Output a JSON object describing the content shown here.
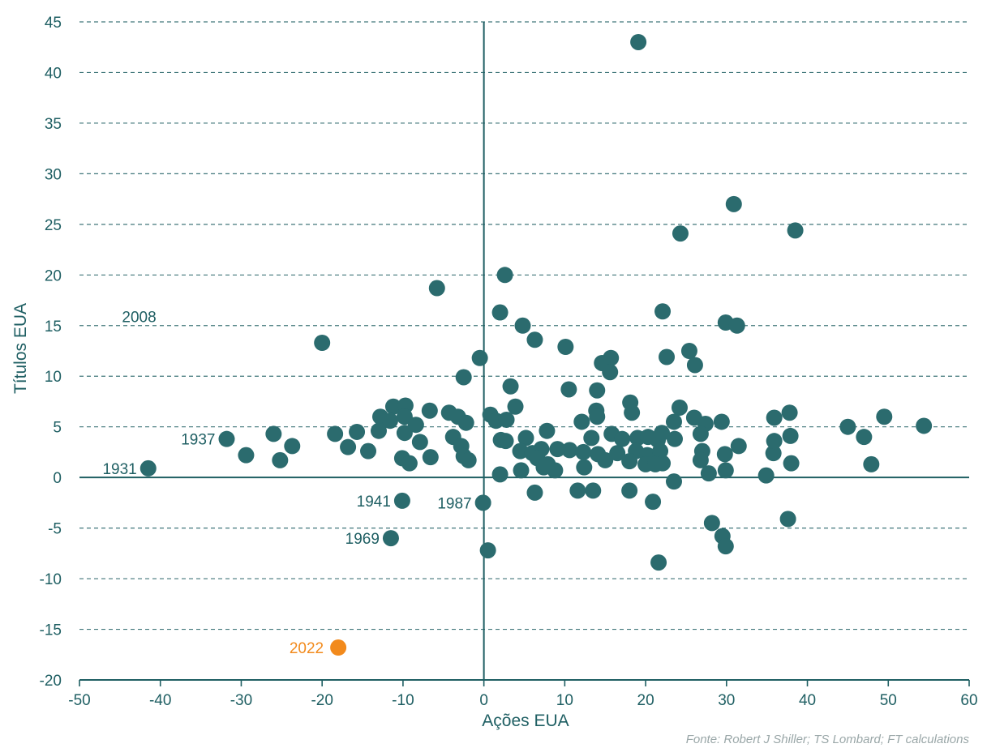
{
  "chart_data": {
    "type": "scatter",
    "xlabel": "Ações EUA",
    "ylabel": "Títulos EUA",
    "xlim": [
      -50,
      60
    ],
    "ylim": [
      -20,
      45
    ],
    "x_ticks": [
      -50,
      -40,
      -30,
      -20,
      -10,
      0,
      10,
      20,
      30,
      40,
      50,
      60
    ],
    "y_ticks": [
      -20,
      -15,
      -10,
      -5,
      0,
      5,
      10,
      15,
      20,
      25,
      30,
      35,
      40,
      45
    ],
    "grid": "horizontal-dashed",
    "colors": {
      "points": "#2b6b6e",
      "highlight": "#f28a1c",
      "axis": "#1f5f63"
    },
    "points": [
      [
        19.1,
        43.0
      ],
      [
        30.9,
        27.0
      ],
      [
        24.3,
        24.1
      ],
      [
        38.5,
        24.4
      ],
      [
        2.6,
        20.0
      ],
      [
        -5.8,
        18.7
      ],
      [
        22.1,
        16.4
      ],
      [
        2.0,
        16.3
      ],
      [
        4.8,
        15.0
      ],
      [
        29.9,
        15.3
      ],
      [
        31.3,
        15.0
      ],
      [
        -20.0,
        13.3
      ],
      [
        6.3,
        13.6
      ],
      [
        10.1,
        12.9
      ],
      [
        25.4,
        12.5
      ],
      [
        22.6,
        11.9
      ],
      [
        15.7,
        11.8
      ],
      [
        14.6,
        11.3
      ],
      [
        26.1,
        11.1
      ],
      [
        -0.5,
        11.8
      ],
      [
        15.6,
        10.4
      ],
      [
        -2.5,
        9.9
      ],
      [
        3.3,
        9.0
      ],
      [
        10.5,
        8.7
      ],
      [
        14.0,
        8.6
      ],
      [
        18.1,
        7.4
      ],
      [
        3.9,
        7.0
      ],
      [
        24.2,
        6.9
      ],
      [
        18.3,
        6.4
      ],
      [
        -11.2,
        7.0
      ],
      [
        -9.7,
        7.1
      ],
      [
        -6.7,
        6.6
      ],
      [
        -4.3,
        6.4
      ],
      [
        0.8,
        6.2
      ],
      [
        13.9,
        6.6
      ],
      [
        35.9,
        5.9
      ],
      [
        37.8,
        6.4
      ],
      [
        49.5,
        6.0
      ],
      [
        -12.8,
        6.0
      ],
      [
        -11.6,
        5.6
      ],
      [
        -9.8,
        6.0
      ],
      [
        -8.4,
        5.2
      ],
      [
        -3.2,
        6.0
      ],
      [
        -2.2,
        5.4
      ],
      [
        1.5,
        5.6
      ],
      [
        2.8,
        5.7
      ],
      [
        14.0,
        6.0
      ],
      [
        12.1,
        5.5
      ],
      [
        26.0,
        5.9
      ],
      [
        23.5,
        5.5
      ],
      [
        27.4,
        5.3
      ],
      [
        29.4,
        5.5
      ],
      [
        45.0,
        5.0
      ],
      [
        54.4,
        5.1
      ],
      [
        -18.4,
        4.3
      ],
      [
        -15.7,
        4.5
      ],
      [
        -13.0,
        4.6
      ],
      [
        -9.8,
        4.4
      ],
      [
        -3.8,
        4.0
      ],
      [
        2.1,
        3.7
      ],
      [
        5.2,
        3.9
      ],
      [
        7.8,
        4.6
      ],
      [
        10.6,
        2.7
      ],
      [
        13.3,
        3.9
      ],
      [
        15.8,
        4.3
      ],
      [
        17.1,
        3.8
      ],
      [
        19.0,
        3.9
      ],
      [
        20.3,
        4.0
      ],
      [
        21.5,
        3.7
      ],
      [
        22.0,
        4.4
      ],
      [
        23.6,
        3.8
      ],
      [
        26.8,
        4.3
      ],
      [
        37.9,
        4.1
      ],
      [
        47.0,
        4.0
      ],
      [
        -31.8,
        3.8
      ],
      [
        -26.0,
        4.3
      ],
      [
        -23.7,
        3.1
      ],
      [
        -16.8,
        3.0
      ],
      [
        -14.3,
        2.6
      ],
      [
        -7.9,
        3.5
      ],
      [
        -2.8,
        3.1
      ],
      [
        2.7,
        3.6
      ],
      [
        4.5,
        2.6
      ],
      [
        6.0,
        2.4
      ],
      [
        7.1,
        2.8
      ],
      [
        9.1,
        2.8
      ],
      [
        12.3,
        2.5
      ],
      [
        14.1,
        2.3
      ],
      [
        16.5,
        2.4
      ],
      [
        18.8,
        2.6
      ],
      [
        20.2,
        2.2
      ],
      [
        21.8,
        2.6
      ],
      [
        27.0,
        2.6
      ],
      [
        29.8,
        2.3
      ],
      [
        31.5,
        3.1
      ],
      [
        35.8,
        2.4
      ],
      [
        35.9,
        3.6
      ],
      [
        -29.4,
        2.2
      ],
      [
        -25.2,
        1.7
      ],
      [
        -10.1,
        1.9
      ],
      [
        -9.2,
        1.4
      ],
      [
        -6.6,
        2.0
      ],
      [
        -2.5,
        2.1
      ],
      [
        -1.9,
        1.7
      ],
      [
        6.6,
        1.9
      ],
      [
        7.9,
        1.3
      ],
      [
        15.0,
        1.7
      ],
      [
        18.0,
        1.6
      ],
      [
        20.0,
        1.3
      ],
      [
        21.2,
        1.3
      ],
      [
        22.1,
        1.4
      ],
      [
        26.8,
        1.7
      ],
      [
        38.0,
        1.4
      ],
      [
        47.9,
        1.3
      ],
      [
        -41.5,
        0.9
      ],
      [
        2.0,
        0.3
      ],
      [
        4.6,
        0.7
      ],
      [
        7.4,
        1.0
      ],
      [
        8.8,
        0.7
      ],
      [
        12.4,
        1.0
      ],
      [
        27.8,
        0.4
      ],
      [
        29.9,
        0.7
      ],
      [
        34.9,
        0.2
      ],
      [
        23.5,
        -0.4
      ],
      [
        11.6,
        -1.3
      ],
      [
        13.5,
        -1.3
      ],
      [
        18.0,
        -1.3
      ],
      [
        6.3,
        -1.5
      ],
      [
        20.9,
        -2.4
      ],
      [
        -10.1,
        -2.3
      ],
      [
        -0.1,
        -2.5
      ],
      [
        28.2,
        -4.5
      ],
      [
        37.6,
        -4.1
      ],
      [
        29.5,
        -5.8
      ],
      [
        29.9,
        -6.8
      ],
      [
        -11.5,
        -6.0
      ],
      [
        0.5,
        -7.2
      ],
      [
        21.6,
        -8.4
      ]
    ],
    "highlight": {
      "x": -18.0,
      "y": -16.8,
      "label": "2022"
    },
    "annotations": [
      {
        "label": "2008",
        "x": -39.1,
        "y": 14.8
      },
      {
        "label": "1937",
        "x": -31.8,
        "y": 3.8
      },
      {
        "label": "1931",
        "x": -41.5,
        "y": 0.9
      },
      {
        "label": "1941",
        "x": -10.1,
        "y": -2.3
      },
      {
        "label": "1987",
        "x": -0.1,
        "y": -2.5
      },
      {
        "label": "1969",
        "x": -11.5,
        "y": -6.0
      }
    ],
    "source": "Fonte: Robert J Shiller; TS Lombard; FT calculations"
  }
}
